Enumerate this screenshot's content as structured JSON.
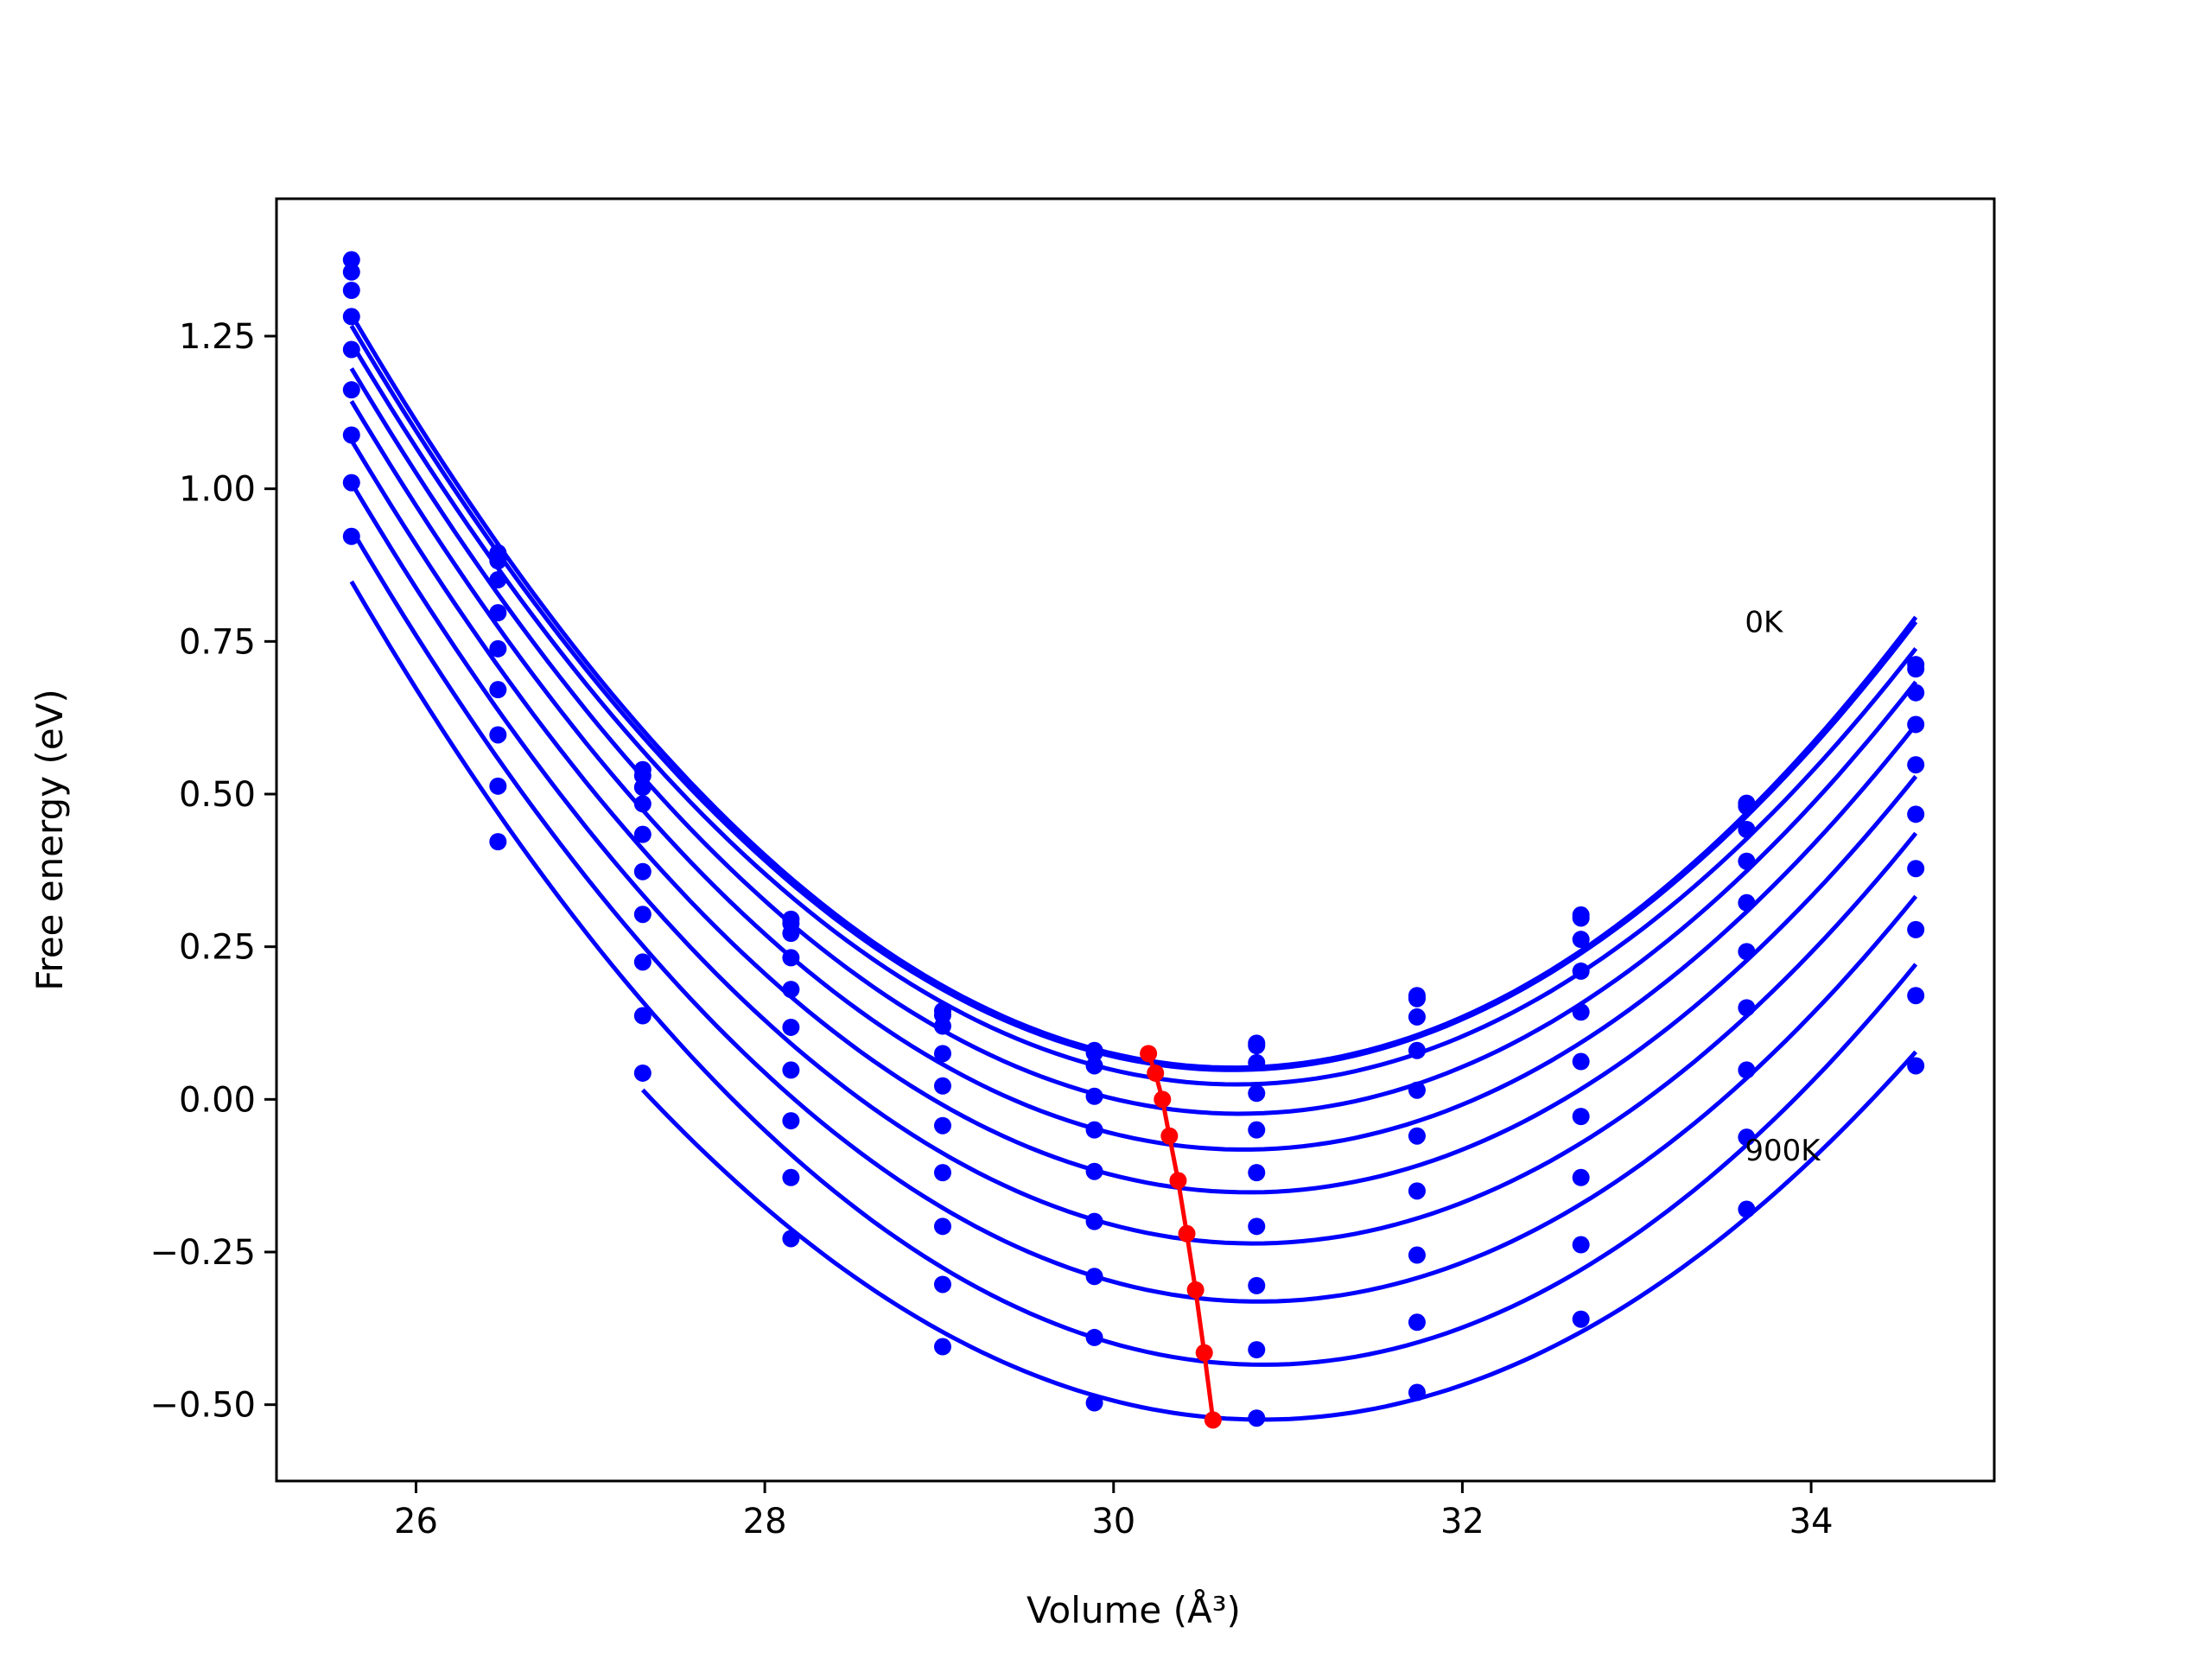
{
  "chart_data": {
    "type": "line",
    "title": "",
    "xlabel": "Volume (Å³)",
    "ylabel": "Free energy (eV)",
    "xlim": [
      25.2,
      35.05
    ],
    "ylim": [
      -0.625,
      1.475
    ],
    "x_ticks": [
      26,
      28,
      30,
      32,
      34
    ],
    "x_tick_labels": [
      "26",
      "28",
      "30",
      "32",
      "34"
    ],
    "y_ticks": [
      1.25,
      1.0,
      0.75,
      0.5,
      0.25,
      0.0,
      -0.25,
      -0.5
    ],
    "y_tick_labels": [
      "1.25",
      "1.00",
      "0.75",
      "0.50",
      "0.25",
      "0.00",
      "−0.25",
      "−0.50"
    ],
    "grid": false,
    "colors": {
      "curves": "#0000ff",
      "minima": "#ff0000",
      "frame": "#000000"
    },
    "annotations": [
      {
        "text": "0K",
        "x": 33.62,
        "y": 0.765
      },
      {
        "text": "900K",
        "x": 33.62,
        "y": -0.1
      }
    ],
    "x": [
      25.63,
      26.47,
      27.3,
      28.15,
      29.02,
      29.89,
      30.82,
      31.74,
      32.68,
      33.63,
      34.6
    ],
    "series": [
      {
        "values": [
          1.375,
          0.895,
          0.54,
          0.295,
          0.145,
          0.08,
          0.092,
          0.17,
          0.302,
          0.485,
          0.712
        ]
      },
      {
        "values": [
          1.355,
          0.882,
          0.53,
          0.288,
          0.138,
          0.076,
          0.088,
          0.165,
          0.297,
          0.48,
          0.705
        ]
      },
      {
        "values": [
          1.325,
          0.851,
          0.511,
          0.272,
          0.12,
          0.055,
          0.06,
          0.135,
          0.262,
          0.442,
          0.666
        ]
      },
      {
        "values": [
          1.282,
          0.797,
          0.484,
          0.232,
          0.075,
          0.005,
          0.01,
          0.08,
          0.21,
          0.39,
          0.614
        ]
      },
      {
        "values": [
          1.228,
          0.738,
          0.434,
          0.18,
          0.022,
          -0.05,
          -0.05,
          0.015,
          0.143,
          0.322,
          0.548
        ]
      },
      {
        "values": [
          1.162,
          0.671,
          0.373,
          0.118,
          -0.043,
          -0.118,
          -0.12,
          -0.06,
          0.062,
          0.242,
          0.467
        ]
      },
      {
        "values": [
          1.088,
          0.597,
          0.303,
          0.048,
          -0.12,
          -0.2,
          -0.208,
          -0.15,
          -0.028,
          0.15,
          0.378
        ]
      },
      {
        "values": [
          1.01,
          0.513,
          0.225,
          -0.035,
          -0.208,
          -0.29,
          -0.305,
          -0.255,
          -0.128,
          0.048,
          0.278
        ]
      },
      {
        "values": [
          0.922,
          0.422,
          0.137,
          -0.128,
          -0.303,
          -0.39,
          -0.41,
          -0.365,
          -0.238,
          -0.062,
          0.17
        ]
      },
      {
        "values": [
          null,
          null,
          0.043,
          -0.228,
          -0.405,
          -0.497,
          -0.522,
          -0.48,
          -0.36,
          -0.18,
          0.055
        ]
      }
    ],
    "minimum_line": {
      "x": [
        30.2,
        30.24,
        30.28,
        30.32,
        30.37,
        30.42,
        30.47,
        30.52,
        30.57
      ],
      "y": [
        0.075,
        0.043,
        0.0,
        -0.06,
        -0.133,
        -0.22,
        -0.312,
        -0.415,
        -0.525
      ]
    }
  }
}
